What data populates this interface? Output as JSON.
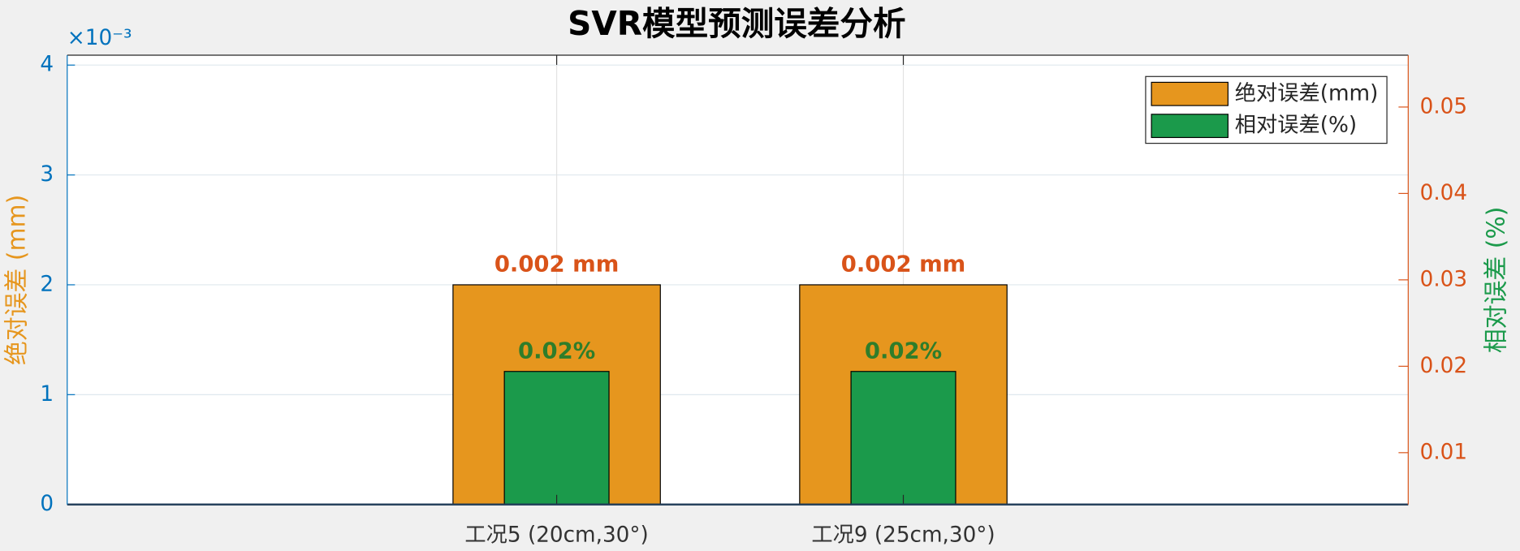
{
  "chart_data": {
    "type": "bar",
    "title": "SVR模型预测误差分析",
    "categories": [
      "工况5 (20cm,30°)",
      "工况9 (25cm,30°)"
    ],
    "ylabel": "绝对误差 (mm)",
    "y2label": "相对误差 (%)",
    "y_exponent_label": "×10⁻³",
    "ylim": [
      0,
      0.00409
    ],
    "yticks": [
      {
        "value": 0,
        "label": "0"
      },
      {
        "value": 0.001,
        "label": "1"
      },
      {
        "value": 0.002,
        "label": "2"
      },
      {
        "value": 0.003,
        "label": "3"
      },
      {
        "value": 0.004,
        "label": "4"
      }
    ],
    "y2lim": [
      0.004,
      0.056
    ],
    "y2ticks": [
      0.01,
      0.02,
      0.03,
      0.04,
      0.05
    ],
    "y_axis_color": "#0072bd",
    "y2_axis_color": "#d95319",
    "ylabel_color": "#e6961e",
    "y2label_color": "#1b9a4b",
    "grid": true,
    "legend": "upper right",
    "series": [
      {
        "name": "绝对误差(mm)",
        "color": "#e6961e",
        "label_color": "#d95319",
        "axis": "y",
        "values": [
          0.002,
          0.002
        ],
        "value_labels": [
          "0.002 mm",
          "0.002 mm"
        ]
      },
      {
        "name": "相对误差(%)",
        "color": "#1b9a4b",
        "label_color": "#2f7d2a",
        "axis": "y2",
        "values": [
          0.0194,
          0.0194
        ],
        "value_labels": [
          "0.02%",
          "0.02%"
        ]
      }
    ]
  }
}
